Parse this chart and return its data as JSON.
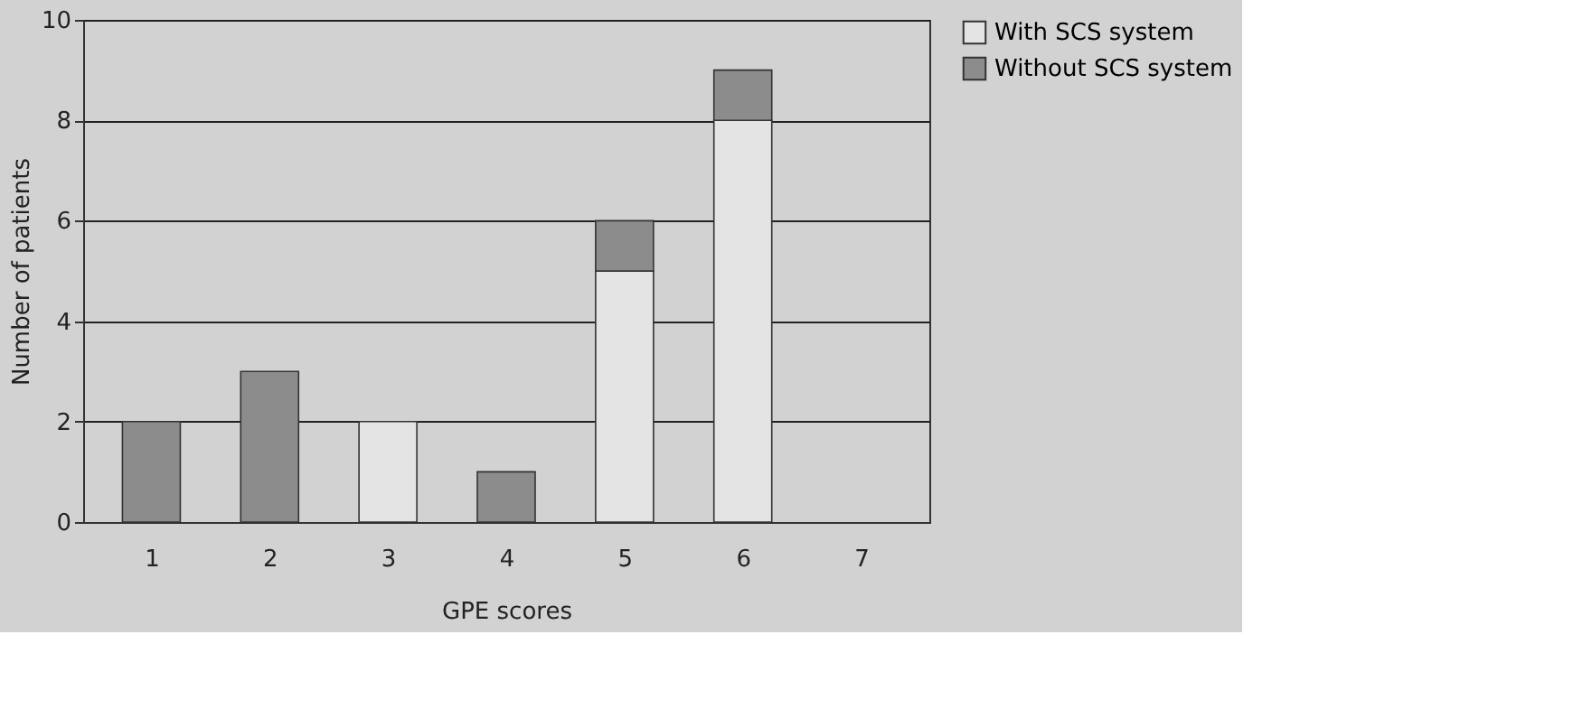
{
  "chart_data": {
    "type": "bar",
    "stacked": true,
    "xlabel": "GPE scores",
    "ylabel": "Number of patients",
    "categories": [
      "1",
      "2",
      "3",
      "4",
      "5",
      "6",
      "7"
    ],
    "series": [
      {
        "name": "With SCS system",
        "color": "#e4e4e4",
        "values": [
          0,
          0,
          2,
          0,
          5,
          8,
          0
        ]
      },
      {
        "name": "Without SCS system",
        "color": "#8c8c8c",
        "values": [
          2,
          3,
          0,
          1,
          1,
          1,
          0
        ]
      }
    ],
    "ylim": [
      0,
      10
    ],
    "yticks": [
      0,
      2,
      4,
      6,
      8,
      10
    ],
    "grid": "y",
    "legend": "right"
  }
}
